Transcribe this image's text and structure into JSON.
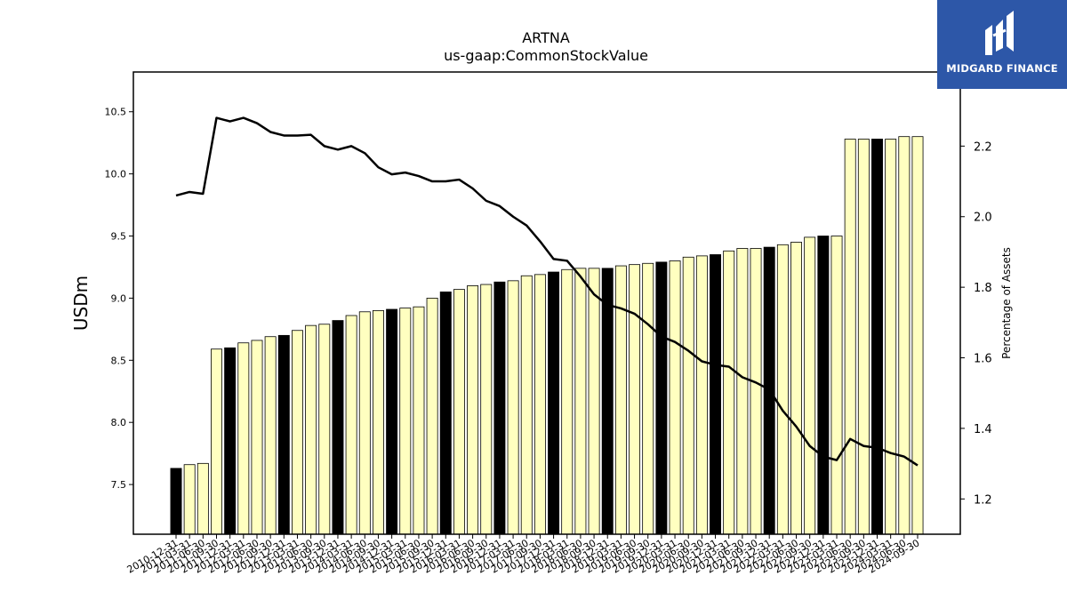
{
  "brand": {
    "name": "MIDGARD FINANCE",
    "color": "#2d57a8"
  },
  "chart_data": {
    "type": "bar",
    "title": "ARTNA",
    "subtitle": "us-gaap:CommonStockValue",
    "ylabel": "USDm",
    "y2label": "Percentage of Assets",
    "ylim": [
      7.1,
      10.82
    ],
    "y2lim": [
      1.1,
      2.41
    ],
    "yticks": [
      7.5,
      8.0,
      8.5,
      9.0,
      9.5,
      10.0,
      10.5
    ],
    "y2ticks": [
      1.2,
      1.4,
      1.6,
      1.8,
      2.0,
      2.2
    ],
    "grid": false,
    "colors": {
      "bar_default": "#ffffc0",
      "bar_highlight": "#000000",
      "bar_edge": "#000000",
      "line": "#000000"
    },
    "categories": [
      "2010-12-31",
      "2011-03-31",
      "2011-06-30",
      "2011-09-30",
      "2011-12-31",
      "2012-03-31",
      "2012-06-30",
      "2012-09-30",
      "2012-12-31",
      "2013-03-31",
      "2013-06-30",
      "2013-09-30",
      "2013-12-31",
      "2014-03-31",
      "2014-06-30",
      "2014-09-30",
      "2014-12-31",
      "2015-03-31",
      "2015-06-30",
      "2015-09-30",
      "2015-12-31",
      "2016-03-31",
      "2016-06-30",
      "2016-09-30",
      "2016-12-31",
      "2017-03-31",
      "2017-06-30",
      "2017-09-30",
      "2017-12-31",
      "2018-03-31",
      "2018-06-30",
      "2018-09-30",
      "2018-12-31",
      "2019-03-31",
      "2019-06-30",
      "2019-09-30",
      "2019-12-31",
      "2020-03-31",
      "2020-06-30",
      "2020-09-30",
      "2020-12-31",
      "2021-03-31",
      "2021-06-30",
      "2021-09-30",
      "2021-12-31",
      "2022-03-31",
      "2022-06-30",
      "2022-09-30",
      "2022-12-31",
      "2023-03-31",
      "2023-06-30",
      "2023-09-30",
      "2023-12-31",
      "2024-03-31",
      "2024-06-30",
      "2024-09-30"
    ],
    "highlight": [
      true,
      false,
      false,
      false,
      true,
      false,
      false,
      false,
      true,
      false,
      false,
      false,
      true,
      false,
      false,
      false,
      true,
      false,
      false,
      false,
      true,
      false,
      false,
      false,
      true,
      false,
      false,
      false,
      true,
      false,
      false,
      false,
      true,
      false,
      false,
      false,
      true,
      false,
      false,
      false,
      true,
      false,
      false,
      false,
      true,
      false,
      false,
      false,
      true,
      false,
      false,
      false,
      true,
      false,
      false,
      false
    ],
    "series": [
      {
        "name": "us-gaap:CommonStockValue",
        "kind": "bar",
        "axis": "left",
        "values": [
          7.63,
          7.66,
          7.67,
          8.59,
          8.6,
          8.64,
          8.66,
          8.69,
          8.7,
          8.74,
          8.78,
          8.79,
          8.82,
          8.86,
          8.89,
          8.9,
          8.91,
          8.92,
          8.93,
          9.0,
          9.05,
          9.07,
          9.1,
          9.11,
          9.13,
          9.14,
          9.18,
          9.19,
          9.21,
          9.23,
          9.24,
          9.24,
          9.24,
          9.26,
          9.27,
          9.28,
          9.29,
          9.3,
          9.33,
          9.34,
          9.35,
          9.38,
          9.4,
          9.4,
          9.41,
          9.43,
          9.45,
          9.49,
          9.5,
          9.5,
          10.28,
          10.28,
          10.28,
          10.28,
          10.3,
          10.3
        ]
      },
      {
        "name": "Percentage of Assets",
        "kind": "line",
        "axis": "right",
        "values": [
          2.06,
          2.07,
          2.065,
          2.28,
          2.27,
          2.28,
          2.265,
          2.24,
          2.23,
          2.23,
          2.232,
          2.2,
          2.19,
          2.2,
          2.18,
          2.14,
          2.12,
          2.125,
          2.115,
          2.1,
          2.1,
          2.105,
          2.08,
          2.045,
          2.03,
          2.0,
          1.975,
          1.93,
          1.88,
          1.875,
          1.83,
          1.78,
          1.75,
          1.74,
          1.725,
          1.695,
          1.66,
          1.645,
          1.62,
          1.59,
          1.58,
          1.575,
          1.545,
          1.53,
          1.51,
          1.45,
          1.405,
          1.35,
          1.32,
          1.31,
          1.37,
          1.35,
          1.345,
          1.33,
          1.32,
          1.295
        ]
      }
    ]
  }
}
